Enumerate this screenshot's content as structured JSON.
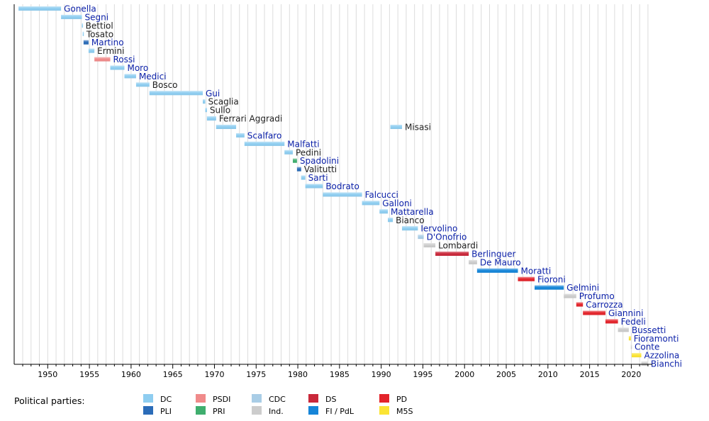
{
  "chart_data": {
    "type": "timeline",
    "title": "",
    "xlim": [
      1946.5,
      2022
    ],
    "x_ticks": [
      1950,
      1955,
      1960,
      1965,
      1970,
      1975,
      1980,
      1985,
      1990,
      1995,
      2000,
      2005,
      2010,
      2015,
      2020
    ],
    "parties": [
      {
        "key": "DC",
        "label": "DC",
        "color": "#8ecdf0"
      },
      {
        "key": "PLI",
        "label": "PLI",
        "color": "#2b6cb8"
      },
      {
        "key": "PSDI",
        "label": "PSDI",
        "color": "#f08a8a"
      },
      {
        "key": "PRI",
        "label": "PRI",
        "color": "#3fae6e"
      },
      {
        "key": "CDC",
        "label": "CDC",
        "color": "#a9cde6"
      },
      {
        "key": "Ind",
        "label": "Ind.",
        "color": "#cccccc"
      },
      {
        "key": "DS",
        "label": "DS",
        "color": "#c9283a"
      },
      {
        "key": "FI",
        "label": "FI / PdL",
        "color": "#1585d8"
      },
      {
        "key": "PD",
        "label": "PD",
        "color": "#e3242b"
      },
      {
        "key": "M5S",
        "label": "M5S",
        "color": "#fbe434"
      }
    ],
    "ministers": [
      {
        "name": "Gonella",
        "start": 1946.5,
        "end": 1951.6,
        "party": "DC",
        "link": true
      },
      {
        "name": "Segni",
        "start": 1951.6,
        "end": 1954.1,
        "party": "DC",
        "link": true
      },
      {
        "name": "Bettiol",
        "start": 1954.1,
        "end": 1954.2,
        "party": "DC",
        "link": false
      },
      {
        "name": "Tosato",
        "start": 1954.2,
        "end": 1954.3,
        "party": "DC",
        "link": false
      },
      {
        "name": "Martino",
        "start": 1954.3,
        "end": 1954.9,
        "party": "PLI",
        "link": true
      },
      {
        "name": "Ermini",
        "start": 1954.9,
        "end": 1955.6,
        "party": "DC",
        "link": false
      },
      {
        "name": "Rossi",
        "start": 1955.6,
        "end": 1957.5,
        "party": "PSDI",
        "link": true
      },
      {
        "name": "Moro",
        "start": 1957.5,
        "end": 1959.2,
        "party": "DC",
        "link": true
      },
      {
        "name": "Medici",
        "start": 1959.2,
        "end": 1960.6,
        "party": "DC",
        "link": true
      },
      {
        "name": "Bosco",
        "start": 1960.6,
        "end": 1962.2,
        "party": "DC",
        "link": false
      },
      {
        "name": "Gui",
        "start": 1962.2,
        "end": 1968.6,
        "party": "DC",
        "link": true
      },
      {
        "name": "Scaglia",
        "start": 1968.6,
        "end": 1968.9,
        "party": "DC",
        "link": false
      },
      {
        "name": "Sullo",
        "start": 1968.9,
        "end": 1969.1,
        "party": "DC",
        "link": false
      },
      {
        "name": "Ferrari Aggradi",
        "start": 1969.1,
        "end": 1970.2,
        "party": "DC",
        "link": false
      },
      {
        "name": "Misasi",
        "start": 1970.2,
        "end": 1972.6,
        "party": "DC",
        "link": false,
        "label_at_second": true
      },
      {
        "name": "Misasi",
        "start": 1991.1,
        "end": 1992.5,
        "party": "DC",
        "link": false,
        "row_shared": true
      },
      {
        "name": "Scalfaro",
        "start": 1972.6,
        "end": 1973.6,
        "party": "DC",
        "link": true
      },
      {
        "name": "Malfatti",
        "start": 1973.6,
        "end": 1978.4,
        "party": "DC",
        "link": true
      },
      {
        "name": "Pedini",
        "start": 1978.4,
        "end": 1979.4,
        "party": "DC",
        "link": false
      },
      {
        "name": "Spadolini",
        "start": 1979.4,
        "end": 1979.9,
        "party": "PRI",
        "link": true
      },
      {
        "name": "Valitutti",
        "start": 1979.9,
        "end": 1980.4,
        "party": "PLI",
        "link": false
      },
      {
        "name": "Sarti",
        "start": 1980.4,
        "end": 1980.9,
        "party": "DC",
        "link": true
      },
      {
        "name": "Bodrato",
        "start": 1980.9,
        "end": 1983.0,
        "party": "DC",
        "link": true
      },
      {
        "name": "Falcucci",
        "start": 1983.0,
        "end": 1987.7,
        "party": "DC",
        "link": true
      },
      {
        "name": "Galloni",
        "start": 1987.7,
        "end": 1989.8,
        "party": "DC",
        "link": true
      },
      {
        "name": "Mattarella",
        "start": 1989.8,
        "end": 1990.8,
        "party": "DC",
        "link": true
      },
      {
        "name": "Bianco",
        "start": 1990.8,
        "end": 1991.4,
        "party": "DC",
        "link": false
      },
      {
        "name": "Iervolino",
        "start": 1992.5,
        "end": 1994.4,
        "party": "DC",
        "link": true
      },
      {
        "name": "D'Onofrio",
        "start": 1994.4,
        "end": 1995.1,
        "party": "CDC",
        "link": true
      },
      {
        "name": "Lombardi",
        "start": 1995.1,
        "end": 1996.5,
        "party": "Ind",
        "link": false
      },
      {
        "name": "Berlinguer",
        "start": 1996.5,
        "end": 2000.5,
        "party": "DS",
        "link": true
      },
      {
        "name": "De Mauro",
        "start": 2000.5,
        "end": 2001.5,
        "party": "Ind",
        "link": true
      },
      {
        "name": "Moratti",
        "start": 2001.5,
        "end": 2006.4,
        "party": "FI",
        "link": true
      },
      {
        "name": "Fioroni",
        "start": 2006.4,
        "end": 2008.4,
        "party": "PD",
        "link": true
      },
      {
        "name": "Gelmini",
        "start": 2008.4,
        "end": 2011.9,
        "party": "FI",
        "link": true
      },
      {
        "name": "Profumo",
        "start": 2011.9,
        "end": 2013.4,
        "party": "Ind",
        "link": true
      },
      {
        "name": "Carrozza",
        "start": 2013.4,
        "end": 2014.2,
        "party": "PD",
        "link": true
      },
      {
        "name": "Giannini",
        "start": 2014.2,
        "end": 2016.9,
        "party": "PD",
        "link": true
      },
      {
        "name": "Fedeli",
        "start": 2016.9,
        "end": 2018.4,
        "party": "PD",
        "link": true
      },
      {
        "name": "Bussetti",
        "start": 2018.4,
        "end": 2019.7,
        "party": "Ind",
        "link": true
      },
      {
        "name": "Fioramonti",
        "start": 2019.7,
        "end": 2019.95,
        "party": "M5S",
        "link": true
      },
      {
        "name": "Conte",
        "start": 2019.95,
        "end": 2020.05,
        "party": "Ind",
        "link": true
      },
      {
        "name": "Azzolina",
        "start": 2020.05,
        "end": 2021.2,
        "party": "M5S",
        "link": true
      },
      {
        "name": "Bianchi",
        "start": 2021.2,
        "end": 2022.0,
        "party": "Ind",
        "link": true
      }
    ],
    "legend_title": "Political parties:"
  }
}
